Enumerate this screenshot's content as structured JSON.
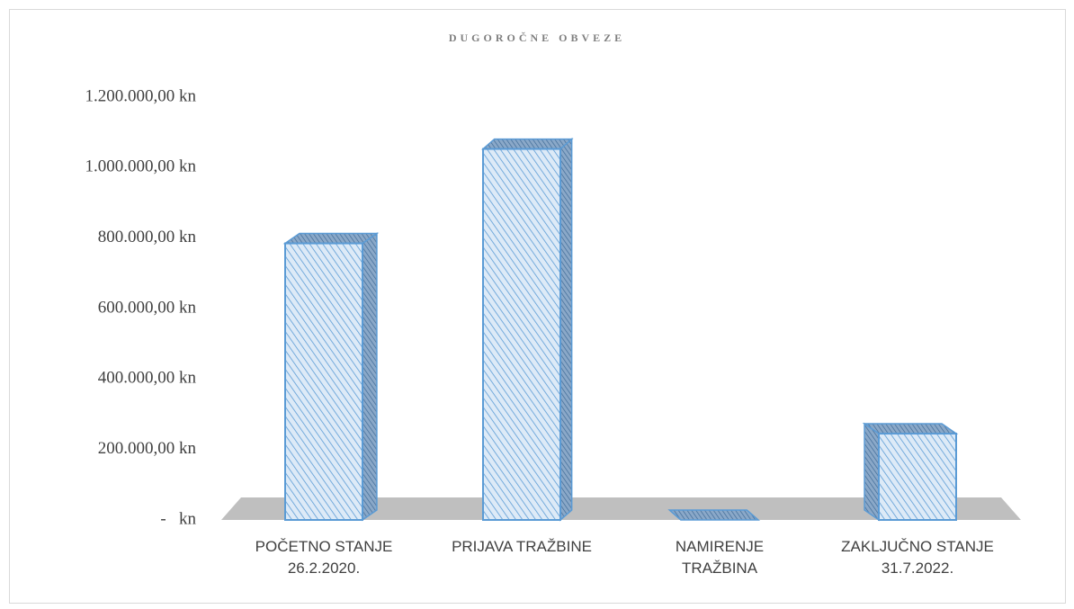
{
  "chart_data": {
    "type": "bar3d",
    "title": "DUGOROČNE OBVEZE",
    "categories": [
      "POČETNO STANJE\n26.2.2020.",
      "PRIJAVA TRAŽBINE",
      "NAMIRENJE\nTRAŽBINA",
      "ZAKLJUČNO STANJE\n31.7.2022."
    ],
    "values": [
      785000,
      1053000,
      0,
      245000
    ],
    "color": "#5b9bd5",
    "ylim": [
      0,
      1200000
    ],
    "yticks": [
      {
        "value": 0,
        "label": "-   kn"
      },
      {
        "value": 200000,
        "label": "200.000,00 kn"
      },
      {
        "value": 400000,
        "label": "400.000,00 kn"
      },
      {
        "value": 600000,
        "label": "600.000,00 kn"
      },
      {
        "value": 800000,
        "label": "800.000,00 kn"
      },
      {
        "value": 1000000,
        "label": "1.000.000,00 kn"
      },
      {
        "value": 1200000,
        "label": "1.200.000,00 kn"
      }
    ],
    "grid": false
  }
}
